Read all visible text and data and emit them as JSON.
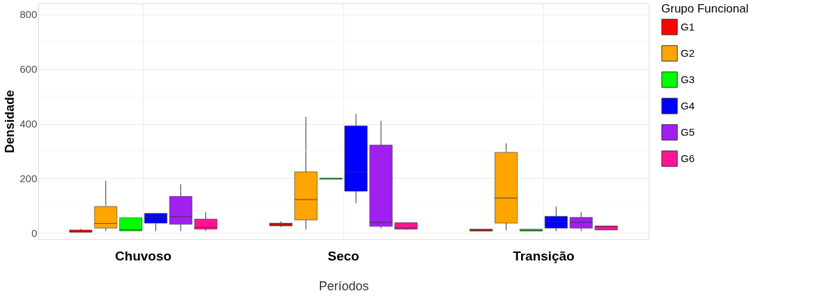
{
  "chart_data": {
    "type": "box",
    "xlabel": "Períodos",
    "ylabel": "Densidade",
    "legend_title": "Grupo Funcional",
    "legend": "right",
    "grid": true,
    "categories": [
      "Chuvoso",
      "Seco",
      "Transição"
    ],
    "ylim": [
      -22,
      840
    ],
    "yticks": [
      0,
      {
        "value": 100,
        "label": null
      },
      200,
      {
        "value": 300,
        "label": null
      },
      400,
      {
        "value": 500,
        "label": null
      },
      600,
      {
        "value": 700,
        "label": null
      },
      800
    ],
    "series": [
      {
        "name": "G1",
        "color": "#ff0000",
        "boxes": [
          {
            "low": 2,
            "q1": 3,
            "median": 5,
            "q3": 11,
            "high": 15
          },
          {
            "low": 22,
            "q1": 26,
            "median": 30,
            "q3": 36,
            "high": 43
          },
          {
            "low": 7,
            "q1": 7,
            "median": 10,
            "q3": 14,
            "high": 14
          }
        ]
      },
      {
        "name": "G2",
        "color": "#ffa500",
        "boxes": [
          {
            "low": 7,
            "q1": 18,
            "median": 35,
            "q3": 97,
            "high": 191
          },
          {
            "low": 13,
            "q1": 48,
            "median": 122,
            "q3": 224,
            "high": 425
          },
          {
            "low": 10,
            "q1": 36,
            "median": 128,
            "q3": 295,
            "high": 328
          }
        ]
      },
      {
        "name": "G3",
        "color": "#00ff00",
        "boxes": [
          {
            "low": 8,
            "q1": 8,
            "median": 12,
            "q3": 56,
            "high": 56
          },
          {
            "low": 197,
            "q1": 197,
            "median": 199,
            "q3": 201,
            "high": 201
          },
          {
            "low": 7,
            "q1": 7,
            "median": 10,
            "q3": 14,
            "high": 14
          }
        ]
      },
      {
        "name": "G4",
        "color": "#0000ff",
        "boxes": [
          {
            "low": 7,
            "q1": 36,
            "median": 59,
            "q3": 72,
            "high": 72
          },
          {
            "low": 109,
            "q1": 153,
            "median": 224,
            "q3": 392,
            "high": 436
          },
          {
            "low": 7,
            "q1": 18,
            "median": 42,
            "q3": 61,
            "high": 96
          }
        ]
      },
      {
        "name": "G5",
        "color": "#a020f0",
        "boxes": [
          {
            "low": 7,
            "q1": 32,
            "median": 60,
            "q3": 134,
            "high": 178
          },
          {
            "low": 17,
            "q1": 24,
            "median": 39,
            "q3": 322,
            "high": 411
          },
          {
            "low": 7,
            "q1": 18,
            "median": 39,
            "q3": 57,
            "high": 76
          }
        ]
      },
      {
        "name": "G6",
        "color": "#ff1493",
        "boxes": [
          {
            "low": 7,
            "q1": 14,
            "median": 20,
            "q3": 51,
            "high": 76
          },
          {
            "low": 11,
            "q1": 14,
            "median": 18,
            "q3": 38,
            "high": 38
          },
          {
            "low": 11,
            "q1": 11,
            "median": 24,
            "q3": 26,
            "high": 26
          }
        ]
      }
    ]
  }
}
